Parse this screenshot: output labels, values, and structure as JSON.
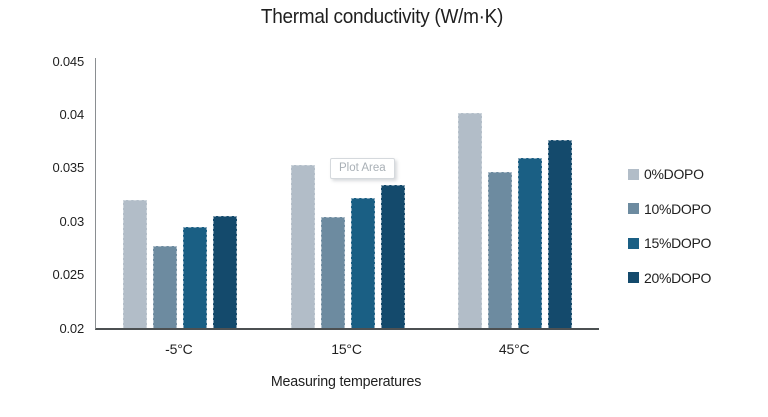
{
  "chart_data": {
    "type": "bar",
    "title": "Thermal conductivity (W/m·K)",
    "xlabel": "Measuring temperatures",
    "ylabel": "",
    "categories": [
      "-5°C",
      "15°C",
      "45°C"
    ],
    "series": [
      {
        "name": "0%DOPO",
        "color": "#b2bdc8",
        "values": [
          0.032,
          0.0353,
          0.0401
        ]
      },
      {
        "name": "10%DOPO",
        "color": "#6d8ba0",
        "values": [
          0.0277,
          0.0304,
          0.0346
        ]
      },
      {
        "name": "15%DOPO",
        "color": "#1a5f84",
        "values": [
          0.0295,
          0.0322,
          0.0359
        ]
      },
      {
        "name": "20%DOPO",
        "color": "#144a6c",
        "values": [
          0.0305,
          0.0334,
          0.0376
        ]
      }
    ],
    "ylim": [
      0.02,
      0.045
    ],
    "ytick_step": 0.005,
    "yticks": [
      "0.045",
      "0.04",
      "0.035",
      "0.03",
      "0.025",
      "0.02"
    ],
    "grid": false,
    "legend_position": "right",
    "tooltip": "Plot Area"
  },
  "colors": {
    "background": "#ffffff",
    "text": "#1f1f1f",
    "axis_vertical": "#8a8e91",
    "axis_horizontal": "#4c5052",
    "tooltip_text": "#a9b0b6",
    "tooltip_border": "#d5d9dd"
  }
}
